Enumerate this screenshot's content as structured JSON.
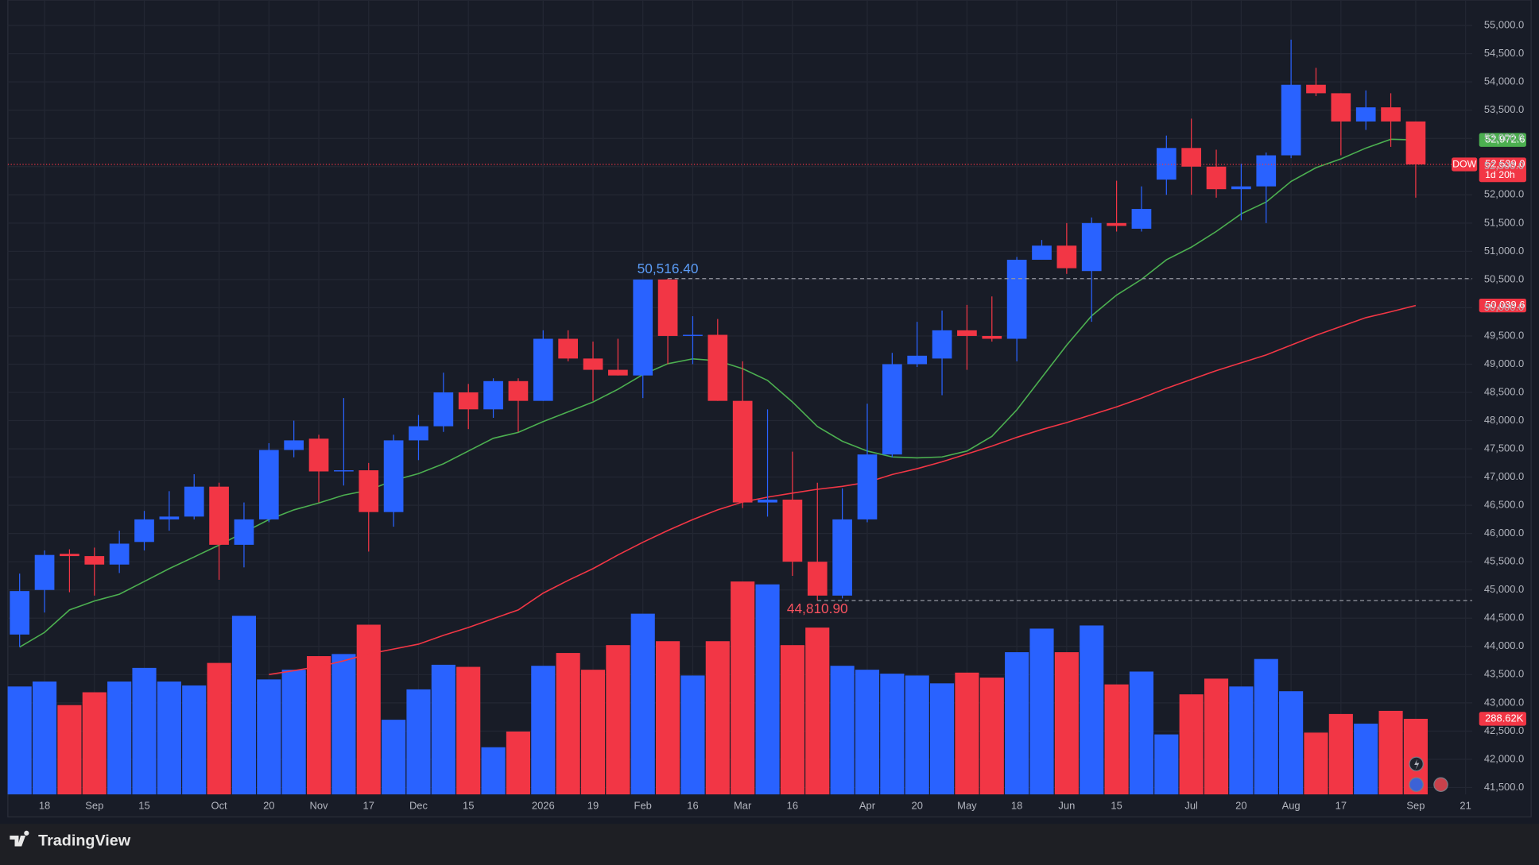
{
  "chart_data": {
    "type": "candlestick",
    "brand": "TradingView",
    "categories": [
      null,
      "18",
      null,
      "Sep",
      null,
      "15",
      null,
      null,
      "Oct",
      null,
      "20",
      null,
      "Nov",
      null,
      "17",
      null,
      "Dec",
      null,
      "15",
      null,
      null,
      "2026",
      null,
      "19",
      null,
      "Feb",
      null,
      "16",
      null,
      "Mar",
      null,
      "16",
      null,
      null,
      "Apr",
      null,
      "20",
      null,
      "May",
      null,
      "18",
      null,
      "Jun",
      null,
      "15",
      null,
      null,
      "Jul",
      null,
      "20",
      null,
      "Aug",
      null,
      "17",
      null,
      null,
      "Sep"
    ],
    "future_categories": [
      null,
      "21"
    ],
    "series": [
      {
        "name": "DOW",
        "up_color": "#2962ff",
        "down_color": "#f23645",
        "open": [
          44210,
          45000,
          45640,
          45600,
          45450,
          45850,
          46250,
          46300,
          46830,
          45800,
          46250,
          47480,
          47680,
          47100,
          47120,
          46380,
          47650,
          47900,
          48500,
          48200,
          48700,
          48350,
          49450,
          49100,
          48900,
          48800,
          50500,
          49500,
          49520,
          48350,
          46550,
          46600,
          45500,
          44900,
          46250,
          47400,
          49000,
          49100,
          49600,
          49500,
          49450,
          50850,
          51100,
          50650,
          51500,
          51400,
          52270,
          52830,
          52500,
          52100,
          52150,
          52700,
          53950,
          53800,
          53300,
          53550,
          53300
        ],
        "high": [
          45290,
          45700,
          45720,
          45750,
          46050,
          46400,
          46750,
          47050,
          46900,
          46550,
          47600,
          48000,
          47750,
          48400,
          47250,
          47750,
          48100,
          48850,
          48650,
          48750,
          48750,
          49600,
          49600,
          49400,
          49450,
          50500,
          50516.4,
          49850,
          49800,
          49050,
          48200,
          47450,
          46900,
          46800,
          48300,
          49200,
          49750,
          49950,
          50050,
          50200,
          50900,
          51200,
          51500,
          51600,
          52250,
          52150,
          53050,
          53350,
          52800,
          52550,
          52750,
          54750,
          54250,
          53800,
          53850,
          53800,
          53300
        ],
        "low": [
          43990,
          44600,
          44960,
          44900,
          45300,
          45700,
          46050,
          46250,
          45180,
          45400,
          46200,
          47350,
          46550,
          46850,
          45680,
          46120,
          47300,
          47800,
          47850,
          48050,
          47800,
          48350,
          49050,
          48350,
          48800,
          48400,
          49000,
          49000,
          48350,
          46450,
          46300,
          45250,
          44810.9,
          44850,
          46200,
          47350,
          48950,
          48450,
          48900,
          49400,
          49050,
          50850,
          50600,
          49750,
          51350,
          51350,
          52000,
          52000,
          51950,
          51550,
          51500,
          52650,
          53750,
          52700,
          53150,
          52850,
          51950
        ],
        "close": [
          44980,
          45620,
          45600,
          45450,
          45820,
          46250,
          46300,
          46830,
          45800,
          46250,
          47480,
          47650,
          47100,
          47120,
          46380,
          47650,
          47900,
          48500,
          48200,
          48700,
          48350,
          49450,
          49100,
          48900,
          48800,
          50500,
          49500,
          49520,
          48350,
          46550,
          46600,
          45500,
          44900,
          46250,
          47400,
          49000,
          49150,
          49600,
          49500,
          49450,
          50850,
          51100,
          50700,
          51500,
          51450,
          51750,
          52830,
          52500,
          52100,
          52150,
          52700,
          53950,
          53800,
          53300,
          53550,
          53300,
          52539
        ],
        "last_label": "52,539.0",
        "countdown": "1d 20h"
      }
    ],
    "volume": {
      "values": [
        412,
        431,
        341,
        390,
        431,
        483,
        431,
        416,
        502,
        682,
        439,
        476,
        528,
        536,
        648,
        285,
        401,
        495,
        487,
        180,
        240,
        491,
        540,
        476,
        570,
        690,
        585,
        454,
        585,
        813,
        802,
        570,
        637,
        491,
        476,
        461,
        454,
        424,
        465,
        446,
        543,
        633,
        543,
        645,
        420,
        469,
        229,
        382,
        442,
        412,
        517,
        394,
        236,
        307,
        270,
        319,
        288.62
      ],
      "last_label": "288.62K"
    },
    "moving_averages": [
      {
        "color": "#4caf50",
        "last_label": "52,972.6",
        "values": [
          43987,
          44248,
          44647,
          44804,
          44925,
          45151,
          45377,
          45585,
          45794,
          46020,
          46246,
          46419,
          46541,
          46680,
          46767,
          46940,
          47062,
          47236,
          47461,
          47687,
          47791,
          47983,
          48156,
          48330,
          48556,
          48816,
          49007,
          49094,
          49059,
          48920,
          48712,
          48330,
          47896,
          47635,
          47461,
          47357,
          47340,
          47357,
          47461,
          47722,
          48191,
          48764,
          49337,
          49858,
          50223,
          50501,
          50849,
          51074,
          51352,
          51665,
          51873,
          52238,
          52481,
          52638,
          52829,
          52985,
          52972.6
        ]
      },
      {
        "color": "#f23645",
        "last_label": "50,039.6",
        "values": [
          null,
          null,
          null,
          null,
          null,
          null,
          null,
          null,
          null,
          null,
          43501,
          43571,
          43640,
          43744,
          43866,
          43953,
          44040,
          44196,
          44335,
          44491,
          44647,
          44943,
          45169,
          45377,
          45620,
          45846,
          46054,
          46246,
          46419,
          46558,
          46645,
          46715,
          46784,
          46836,
          46906,
          47045,
          47149,
          47270,
          47409,
          47548,
          47705,
          47844,
          47965,
          48104,
          48243,
          48399,
          48573,
          48729,
          48886,
          49025,
          49164,
          49337,
          49511,
          49667,
          49824,
          49928,
          50039.6
        ]
      }
    ],
    "annotations": {
      "high": {
        "value": 50516.4,
        "label": "50,516.40",
        "color": "#5b9cf6"
      },
      "low": {
        "value": 44810.9,
        "label": "44,810.90",
        "color": "#f7525f"
      }
    },
    "ylim": [
      41378,
      55452
    ],
    "yticks": [
      {
        "value": 41500,
        "label": "41,500.0"
      },
      {
        "value": 42000,
        "label": "42,000.0"
      },
      {
        "value": 42500,
        "label": "42,500.0"
      },
      {
        "value": 43000,
        "label": "43,000.0"
      },
      {
        "value": 43500,
        "label": "43,500.0"
      },
      {
        "value": 44000,
        "label": "44,000.0"
      },
      {
        "value": 44500,
        "label": "44,500.0"
      },
      {
        "value": 45000,
        "label": "45,000.0"
      },
      {
        "value": 45500,
        "label": "45,500.0"
      },
      {
        "value": 46000,
        "label": "46,000.0"
      },
      {
        "value": 46500,
        "label": "46,500.0"
      },
      {
        "value": 47000,
        "label": "47,000.0"
      },
      {
        "value": 47500,
        "label": "47,500.0"
      },
      {
        "value": 48000,
        "label": "48,000.0"
      },
      {
        "value": 48500,
        "label": "48,500.0"
      },
      {
        "value": 49000,
        "label": "49,000.0"
      },
      {
        "value": 49500,
        "label": "49,500.0"
      },
      {
        "value": 50000,
        "label": "50,000.0"
      },
      {
        "value": 50500,
        "label": "50,500.0"
      },
      {
        "value": 51000,
        "label": "51,000.0"
      },
      {
        "value": 51500,
        "label": "51,500.0"
      },
      {
        "value": 52000,
        "label": "52,000.0"
      },
      {
        "value": 52500,
        "label": "52,500.0"
      },
      {
        "value": 53000,
        "label": "53,000.0"
      },
      {
        "value": 53500,
        "label": "53,500.0"
      },
      {
        "value": 54000,
        "label": "54,000.0"
      },
      {
        "value": 54500,
        "label": "54,500.0"
      },
      {
        "value": 55000,
        "label": "55,000.0"
      }
    ],
    "grid": true
  }
}
